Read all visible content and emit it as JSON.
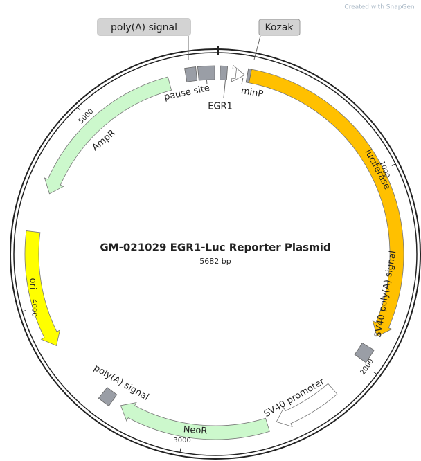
{
  "title": "GM-021029 EGR1-Luc Reporter Plasmid",
  "length_label": "5682 bp",
  "watermark": "Created with SnapGen",
  "features": [
    {
      "label": "luciferase"
    },
    {
      "label": "SV40 poly(A) signal"
    },
    {
      "label": "SV40 promoter"
    },
    {
      "label": "NeoR"
    },
    {
      "label": "poly(A) signal"
    },
    {
      "label": "ori"
    },
    {
      "label": "AmpR"
    },
    {
      "label": "pause site"
    },
    {
      "label": "EGR1"
    },
    {
      "label": "minP"
    }
  ],
  "callouts": [
    {
      "label": "poly(A) signal"
    },
    {
      "label": "Kozak"
    }
  ],
  "tick_labels": [
    "1000",
    "2000",
    "3000",
    "4000",
    "5000"
  ]
}
